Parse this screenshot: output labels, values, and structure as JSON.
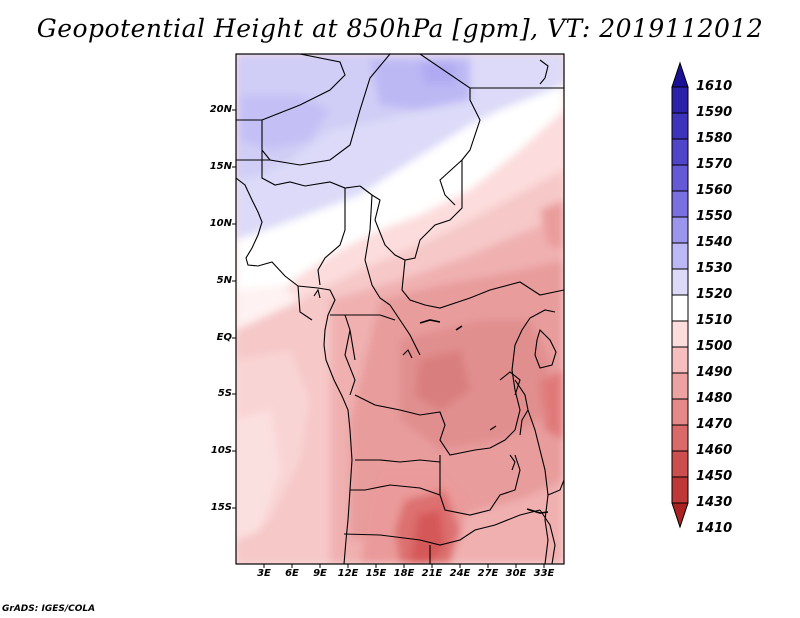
{
  "title": "Geopotential Height at 850hPa [gpm], VT: 2019112012",
  "credit": "GrADS: IGES/COLA",
  "lat_labels": [
    "20N",
    "15N",
    "10N",
    "5N",
    "EQ",
    "5S",
    "10S",
    "15S"
  ],
  "lon_labels": [
    "3E",
    "6E",
    "9E",
    "12E",
    "15E",
    "18E",
    "21E",
    "24E",
    "27E",
    "30E",
    "33E"
  ],
  "colorbar": {
    "labels": [
      "1610",
      "1590",
      "1580",
      "1570",
      "1560",
      "1550",
      "1540",
      "1530",
      "1520",
      "1510",
      "1500",
      "1490",
      "1480",
      "1470",
      "1460",
      "1450",
      "1430",
      "1410"
    ],
    "colors": [
      "#1b1196",
      "#2c22aa",
      "#3e34bc",
      "#5044c8",
      "#6559d6",
      "#7a70e0",
      "#9c95ec",
      "#bcb8f4",
      "#dcdaf8",
      "#ffffff",
      "#fcdcdc",
      "#f6bebe",
      "#eea3a3",
      "#e58888",
      "#da6a6a",
      "#cd4e4e",
      "#be3838",
      "#aa2222"
    ]
  }
}
